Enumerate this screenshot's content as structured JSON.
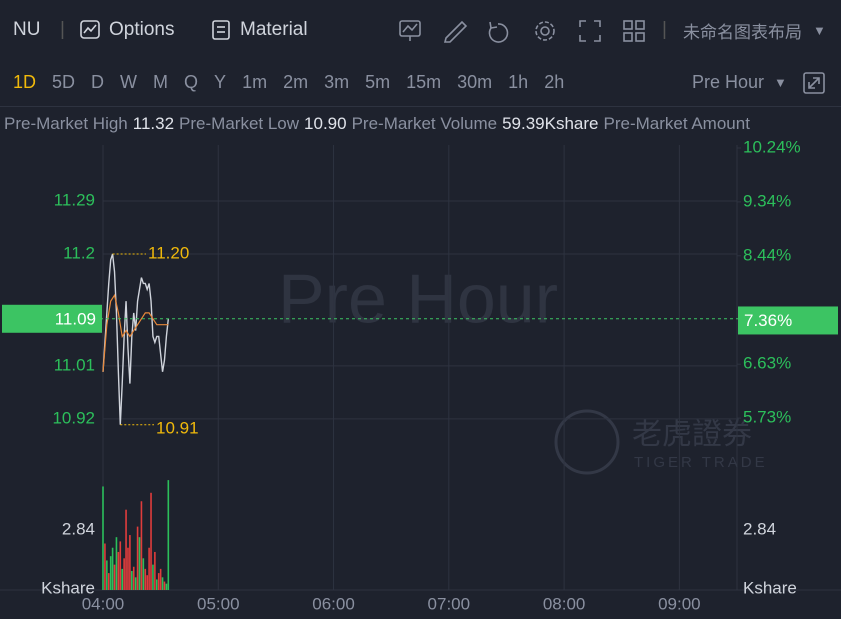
{
  "toolbar": {
    "symbol": "NU",
    "options": "Options",
    "material": "Material",
    "layout": "未命名图表布局"
  },
  "periods": {
    "items": [
      "1D",
      "5D",
      "D",
      "W",
      "M",
      "Q",
      "Y",
      "1m",
      "2m",
      "3m",
      "5m",
      "15m",
      "30m",
      "1h",
      "2h"
    ],
    "active": 0,
    "session": "Pre Hour"
  },
  "info": [
    {
      "label": "Pre-Market High",
      "value": "11.32"
    },
    {
      "label": "Pre-Market Low",
      "value": "10.90"
    },
    {
      "label": "Pre-Market Volume",
      "value": "59.39Kshare"
    },
    {
      "label": "Pre-Market Amount",
      "value": ""
    }
  ],
  "chart": {
    "watermark": "Pre Hour",
    "logo": {
      "cn": "老虎證券",
      "en": "TIGER TRADE"
    },
    "xlim": [
      0,
      330
    ],
    "xticks": [
      {
        "value": 0,
        "label": "04:00"
      },
      {
        "value": 60,
        "label": "05:00"
      },
      {
        "value": 120,
        "label": "06:00"
      },
      {
        "value": 180,
        "label": "07:00"
      },
      {
        "value": 240,
        "label": "08:00"
      },
      {
        "value": 300,
        "label": "09:00"
      }
    ],
    "price": {
      "ylim": [
        10.84,
        11.38
      ],
      "yticks": [
        11.29,
        11.2,
        11.01,
        10.92
      ],
      "y2lim": [
        4.93,
        10.24
      ],
      "y2ticks": [
        {
          "value": 10.24,
          "label": "10.24%"
        },
        {
          "value": 9.34,
          "label": "9.34%"
        },
        {
          "value": 8.44,
          "label": "8.44%"
        },
        {
          "value": 6.63,
          "label": "6.63%"
        },
        {
          "value": 5.73,
          "label": "5.73%"
        }
      ],
      "series": [
        {
          "name": "Price",
          "color": "#d0d4dc",
          "x": [
            0,
            1,
            2,
            3,
            4,
            5,
            6,
            7,
            8,
            9,
            10,
            11,
            12,
            13,
            14,
            15,
            16,
            17,
            18,
            19,
            20,
            21,
            22,
            23,
            24,
            25,
            26,
            27,
            28,
            29,
            30,
            31,
            32,
            33,
            34
          ],
          "values": [
            11.0,
            11.05,
            11.1,
            11.15,
            11.19,
            11.2,
            11.17,
            11.1,
            11.0,
            10.91,
            10.98,
            11.06,
            11.12,
            11.04,
            10.98,
            11.06,
            11.1,
            11.07,
            11.12,
            11.14,
            11.16,
            11.15,
            11.15,
            11.14,
            11.15,
            11.12,
            11.06,
            11.05,
            11.06,
            11.06,
            11.03,
            11.0,
            11.02,
            11.06,
            11.09
          ]
        },
        {
          "name": "Average",
          "color": "#e8883a",
          "x": [
            0,
            2,
            4,
            6,
            8,
            10,
            12,
            14,
            16,
            18,
            20,
            22,
            24,
            26,
            28,
            30,
            32,
            34
          ],
          "values": [
            11.0,
            11.08,
            11.12,
            11.13,
            11.1,
            11.06,
            11.07,
            11.06,
            11.07,
            11.08,
            11.09,
            11.1,
            11.1,
            11.09,
            11.08,
            11.08,
            11.08,
            11.08
          ]
        }
      ],
      "high": {
        "x": 5,
        "value": 11.2,
        "label": "11.20"
      },
      "low": {
        "x": 9,
        "value": 10.91
      },
      "last": {
        "value": 11.09,
        "pct": {
          "value": 7.36,
          "label": "7.36%"
        }
      }
    },
    "volume": {
      "unit": "Kshare",
      "ylim": [
        0,
        5.3
      ],
      "yticks": [
        2.84
      ],
      "x": [
        0,
        1,
        2,
        3,
        4,
        5,
        6,
        7,
        8,
        9,
        10,
        11,
        12,
        13,
        14,
        15,
        16,
        17,
        18,
        19,
        20,
        21,
        22,
        23,
        24,
        25,
        26,
        27,
        28,
        29,
        30,
        31,
        32,
        33,
        34
      ],
      "values": [
        4.9,
        2.2,
        1.4,
        0.8,
        1.6,
        2.0,
        1.2,
        2.5,
        1.8,
        2.3,
        1.0,
        1.5,
        3.8,
        2.0,
        2.6,
        0.9,
        1.1,
        0.6,
        3.0,
        2.5,
        4.2,
        1.5,
        1.0,
        0.7,
        2.0,
        4.6,
        1.2,
        1.8,
        0.5,
        0.8,
        1.0,
        0.6,
        0.4,
        0.3,
        5.2
      ],
      "colors": [
        "#2cbf5b",
        "#e03c3c",
        "#2cbf5b",
        "#e03c3c",
        "#2cbf5b",
        "#2cbf5b",
        "#e03c3c",
        "#2cbf5b",
        "#e03c3c",
        "#e03c3c",
        "#2cbf5b",
        "#e03c3c",
        "#e03c3c",
        "#e03c3c",
        "#e03c3c",
        "#2cbf5b",
        "#e03c3c",
        "#2cbf5b",
        "#e03c3c",
        "#2cbf5b",
        "#e03c3c",
        "#2cbf5b",
        "#e03c3c",
        "#e03c3c",
        "#e03c3c",
        "#e03c3c",
        "#2cbf5b",
        "#e03c3c",
        "#2cbf5b",
        "#e03c3c",
        "#e03c3c",
        "#2cbf5b",
        "#e03c3c",
        "#2cbf5b",
        "#2cbf5b"
      ]
    }
  }
}
